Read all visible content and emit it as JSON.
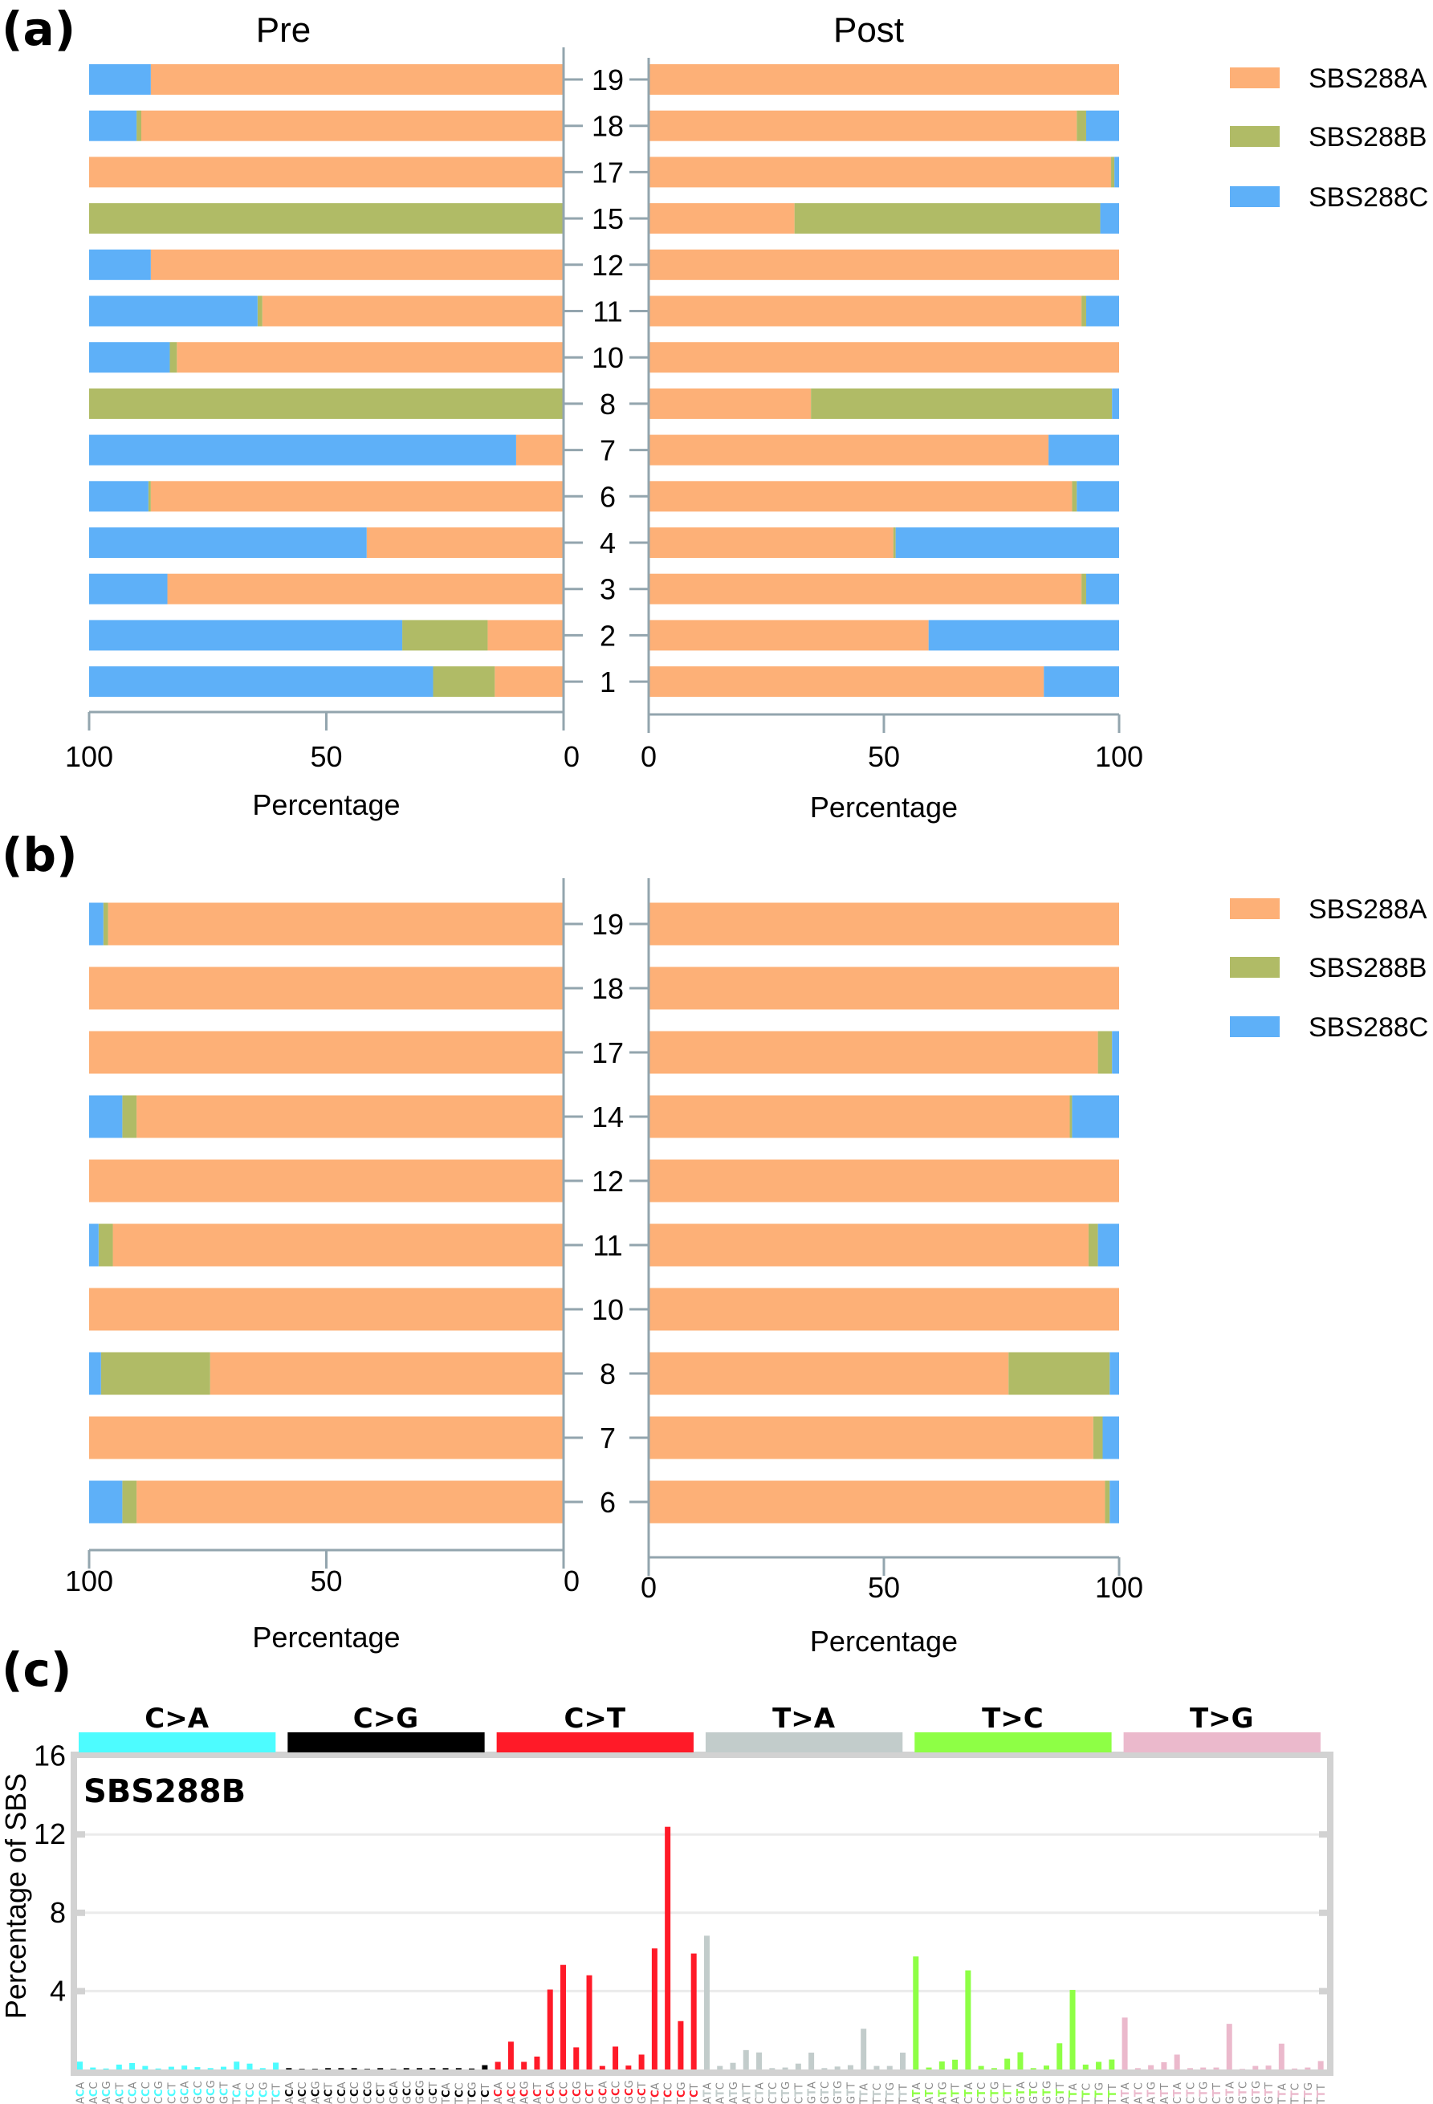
{
  "panel_labels": {
    "a": "(a)",
    "b": "(b)",
    "c": "(c)"
  },
  "colors": {
    "SBS288A": "#FDB077",
    "SBS288B": "#B0BB66",
    "SBS288C": "#5EB0F8",
    "axis": "#93A5AE"
  },
  "legend": [
    "SBS288A",
    "SBS288B",
    "SBS288C"
  ],
  "chart_data": [
    {
      "id": "a-pre",
      "type": "bar",
      "orientation": "horizontal-stacked",
      "title": "Pre",
      "xlabel": "Percentage",
      "xlim": [
        100,
        0
      ],
      "xticks": [
        "100",
        "50",
        "0"
      ],
      "categories": [
        "19",
        "18",
        "17",
        "15",
        "12",
        "11",
        "10",
        "8",
        "7",
        "6",
        "4",
        "3",
        "2",
        "1"
      ],
      "series": [
        {
          "name": "SBS288A",
          "values": [
            87,
            89,
            100,
            0,
            87,
            63.5,
            81.5,
            0,
            10,
            87,
            41.5,
            83.5,
            16,
            14.5
          ]
        },
        {
          "name": "SBS288B",
          "values": [
            0,
            1,
            0,
            100,
            0,
            1,
            1.5,
            100,
            0,
            0.5,
            0,
            0,
            18,
            13
          ]
        },
        {
          "name": "SBS288C",
          "values": [
            13,
            10,
            0,
            0,
            13,
            35.5,
            17,
            0,
            90,
            12.5,
            58.5,
            16.5,
            66,
            72.5
          ]
        }
      ]
    },
    {
      "id": "a-post",
      "type": "bar",
      "orientation": "horizontal-stacked",
      "title": "Post",
      "xlabel": "Percentage",
      "xlim": [
        0,
        100
      ],
      "xticks": [
        "0",
        "50",
        "100"
      ],
      "categories": [
        "19",
        "18",
        "17",
        "15",
        "12",
        "11",
        "10",
        "8",
        "7",
        "6",
        "4",
        "3",
        "2",
        "1"
      ],
      "series": [
        {
          "name": "SBS288A",
          "values": [
            100,
            91,
            98.3,
            31,
            100,
            92,
            100,
            34.5,
            85,
            90,
            52,
            92,
            59.5,
            84
          ]
        },
        {
          "name": "SBS288B",
          "values": [
            0,
            2,
            0.7,
            65,
            0,
            1,
            0,
            64,
            0,
            1,
            0.5,
            1,
            0,
            0
          ]
        },
        {
          "name": "SBS288C",
          "values": [
            0,
            7,
            1,
            4,
            0,
            7,
            0,
            1.5,
            15,
            9,
            47.5,
            7,
            40.5,
            16
          ]
        }
      ]
    },
    {
      "id": "b-pre",
      "type": "bar",
      "orientation": "horizontal-stacked",
      "xlabel": "Percentage",
      "xlim": [
        100,
        0
      ],
      "xticks": [
        "100",
        "50",
        "0"
      ],
      "categories": [
        "19",
        "18",
        "17",
        "14",
        "12",
        "11",
        "10",
        "8",
        "7",
        "6"
      ],
      "series": [
        {
          "name": "SBS288A",
          "values": [
            96,
            100,
            100,
            90,
            100,
            95,
            100,
            74.5,
            100,
            90
          ]
        },
        {
          "name": "SBS288B",
          "values": [
            1,
            0,
            0,
            3,
            0,
            3,
            0,
            23,
            0,
            3
          ]
        },
        {
          "name": "SBS288C",
          "values": [
            3,
            0,
            0,
            7,
            0,
            2,
            0,
            2.5,
            0,
            7
          ]
        }
      ]
    },
    {
      "id": "b-post",
      "type": "bar",
      "orientation": "horizontal-stacked",
      "xlabel": "Percentage",
      "xlim": [
        0,
        100
      ],
      "xticks": [
        "0",
        "50",
        "100"
      ],
      "categories": [
        "19",
        "18",
        "17",
        "14",
        "12",
        "11",
        "10",
        "8",
        "7",
        "6"
      ],
      "series": [
        {
          "name": "SBS288A",
          "values": [
            100,
            100,
            95.5,
            89.5,
            100,
            93.5,
            100,
            76.5,
            94.5,
            97
          ]
        },
        {
          "name": "SBS288B",
          "values": [
            0,
            0,
            3,
            0.5,
            0,
            2,
            0,
            21.5,
            2,
            1
          ]
        },
        {
          "name": "SBS288C",
          "values": [
            0,
            0,
            1.5,
            10,
            0,
            4.5,
            0,
            2,
            3.5,
            2
          ]
        }
      ]
    },
    {
      "id": "c",
      "type": "bar",
      "title": "SBS288B",
      "ylabel": "Percentage of SBS",
      "ylim": [
        0,
        16
      ],
      "yticks": [
        "4",
        "8",
        "12",
        "16"
      ],
      "grid": true,
      "groups": [
        {
          "name": "C>A",
          "color": "#4DFCFF",
          "labels": [
            "ACA",
            "ACC",
            "ACG",
            "ACT",
            "CCA",
            "CCC",
            "CCG",
            "CCT",
            "GCA",
            "GCC",
            "GCG",
            "GCT",
            "TCA",
            "TCC",
            "TCG",
            "TCT"
          ],
          "values": [
            0.4,
            0.1,
            0.05,
            0.25,
            0.33,
            0.18,
            0.05,
            0.14,
            0.2,
            0.12,
            0.07,
            0.14,
            0.4,
            0.3,
            0.07,
            0.35
          ]
        },
        {
          "name": "C>G",
          "color": "#000000",
          "labels": [
            "ACA",
            "ACC",
            "ACG",
            "ACT",
            "CCA",
            "CCC",
            "CCG",
            "CCT",
            "GCA",
            "GCC",
            "GCG",
            "GCT",
            "TCA",
            "TCC",
            "TCG",
            "TCT"
          ],
          "values": [
            0.07,
            0.03,
            0.03,
            0.07,
            0.07,
            0.07,
            0.03,
            0.07,
            0.03,
            0.07,
            0.07,
            0.07,
            0.07,
            0.07,
            0.05,
            0.22
          ]
        },
        {
          "name": "C>T",
          "color": "#FF1A28",
          "labels": [
            "ACA",
            "ACC",
            "ACG",
            "ACT",
            "CCA",
            "CCC",
            "CCG",
            "CCT",
            "GCA",
            "GCC",
            "GCG",
            "GCT",
            "TCA",
            "TCC",
            "TCG",
            "TCT"
          ],
          "values": [
            0.39,
            1.42,
            0.39,
            0.66,
            4.08,
            5.34,
            1.13,
            4.81,
            0.18,
            1.17,
            0.2,
            0.76,
            6.18,
            12.39,
            2.47,
            5.92
          ]
        },
        {
          "name": "T>A",
          "color": "#C2CCCB",
          "labels": [
            "ATA",
            "ATC",
            "ATG",
            "ATT",
            "CTA",
            "CTC",
            "CTG",
            "CTT",
            "GTA",
            "GTC",
            "GTG",
            "GTT",
            "TTA",
            "TTC",
            "TTG",
            "TTT"
          ],
          "values": [
            6.83,
            0.18,
            0.34,
            0.99,
            0.87,
            0.07,
            0.1,
            0.3,
            0.86,
            0.07,
            0.15,
            0.22,
            2.08,
            0.18,
            0.18,
            0.86
          ]
        },
        {
          "name": "T>C",
          "color": "#8EFF45",
          "labels": [
            "ATA",
            "ATC",
            "ATG",
            "ATT",
            "CTA",
            "CTC",
            "CTG",
            "CTT",
            "GTA",
            "GTC",
            "GTG",
            "GTT",
            "TTA",
            "TTC",
            "TTG",
            "TTT"
          ],
          "values": [
            5.77,
            0.1,
            0.41,
            0.5,
            5.06,
            0.18,
            0.07,
            0.55,
            0.88,
            0.07,
            0.2,
            1.34,
            4.06,
            0.25,
            0.39,
            0.51
          ]
        },
        {
          "name": "T>G",
          "color": "#EBB9CC",
          "labels": [
            "ATA",
            "ATC",
            "ATG",
            "ATT",
            "CTA",
            "CTC",
            "CTG",
            "CTT",
            "GTA",
            "GTC",
            "GTG",
            "GTT",
            "TTA",
            "TTC",
            "TTG",
            "TTT"
          ],
          "values": [
            2.65,
            0.07,
            0.22,
            0.37,
            0.76,
            0.07,
            0.1,
            0.1,
            2.33,
            0.03,
            0.18,
            0.2,
            1.32,
            0.05,
            0.1,
            0.43
          ]
        }
      ]
    }
  ]
}
